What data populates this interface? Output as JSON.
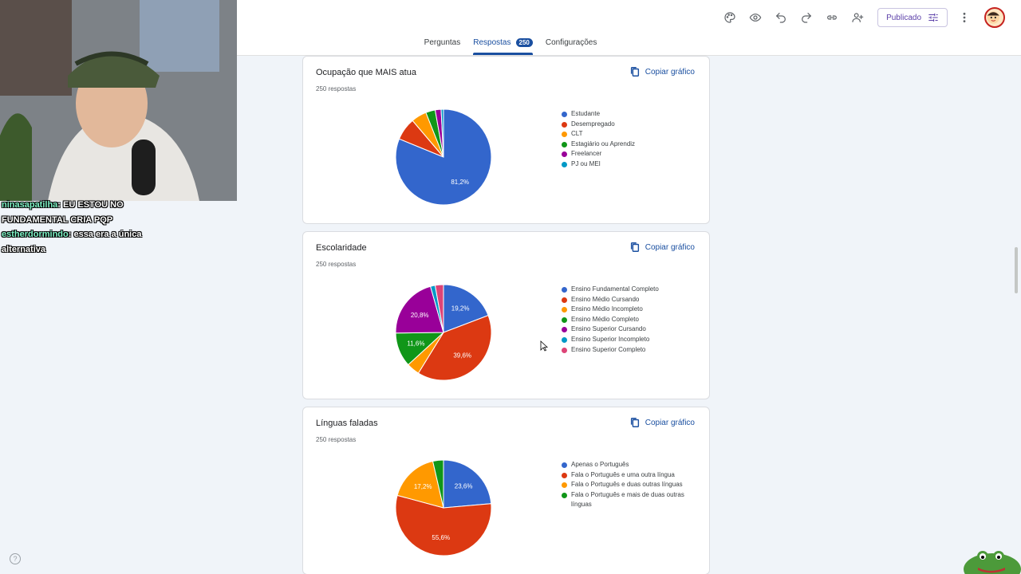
{
  "header": {
    "tabs": [
      {
        "label": "Perguntas"
      },
      {
        "label": "Respostas",
        "badge": "250",
        "active": true
      },
      {
        "label": "Configurações"
      }
    ],
    "toolbar": {
      "icons": [
        "palette-icon",
        "eye-icon",
        "undo-icon",
        "redo-icon",
        "link-icon",
        "add-person-icon",
        "more-vert-icon"
      ],
      "publish_label": "Publicado"
    }
  },
  "copy_label": "Copiar gráfico",
  "cards": [
    {
      "title": "Ocupação que MAIS atua",
      "count": "250 respostas",
      "chart_data": {
        "type": "pie",
        "categories": [
          "Estudante",
          "Desempregado",
          "CLT",
          "Estagiário ou Aprendiz",
          "Freelancer",
          "PJ ou MEI"
        ],
        "values": [
          81.2,
          7.6,
          5.2,
          3.2,
          2.0,
          0.8
        ],
        "labels": [
          "81,2%",
          "",
          "",
          "",
          "",
          ""
        ],
        "colors": [
          "#3366cc",
          "#dc3912",
          "#ff9900",
          "#109618",
          "#990099",
          "#0099c6"
        ]
      }
    },
    {
      "title": "Escolaridade",
      "count": "250 respostas",
      "chart_data": {
        "type": "pie",
        "categories": [
          "Ensino Fundamental Completo",
          "Ensino Médio Cursando",
          "Ensino Médio Incompleto",
          "Ensino Médio Completo",
          "Ensino Superior Cursando",
          "Ensino Superior Incompleto",
          "Ensino Superior Completo"
        ],
        "values": [
          19.2,
          39.6,
          4.4,
          11.6,
          20.8,
          1.6,
          2.8
        ],
        "labels": [
          "19,2%",
          "39,6%",
          "",
          "11,6%",
          "20,8%",
          "",
          ""
        ],
        "colors": [
          "#3366cc",
          "#dc3912",
          "#ff9900",
          "#109618",
          "#990099",
          "#0099c6",
          "#dd4477"
        ]
      }
    },
    {
      "title": "Línguas faladas",
      "count": "250 respostas",
      "chart_data": {
        "type": "pie",
        "categories": [
          "Apenas o Português",
          "Fala o Português e uma outra língua",
          "Fala o Português e duas outras línguas",
          "Fala o Português e mais de duas outras línguas"
        ],
        "values": [
          23.6,
          55.6,
          17.2,
          3.6
        ],
        "labels": [
          "23,6%",
          "55,6%",
          "17,2%",
          ""
        ],
        "colors": [
          "#3366cc",
          "#dc3912",
          "#ff9900",
          "#109618"
        ]
      }
    }
  ],
  "stream_chat": [
    {
      "user": "ninasapatilha",
      "message": "EU ESTOU NO FUNDAMENTAL CRIA PQP"
    },
    {
      "user": "estherdormindo",
      "message": "essa era a única alternativa"
    }
  ]
}
